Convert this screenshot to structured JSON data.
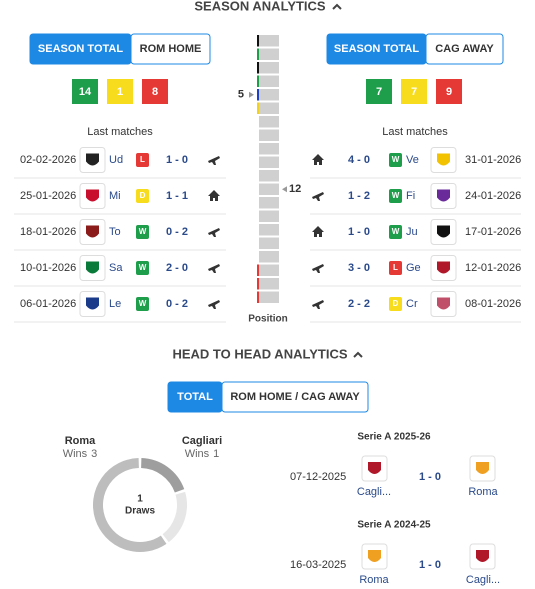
{
  "season": {
    "title": "SEASON ANALYTICS",
    "home": {
      "tabs": [
        "SEASON TOTAL",
        "ROM HOME"
      ],
      "record": [
        {
          "value": 14,
          "color": "#1e9e4b"
        },
        {
          "value": 1,
          "color": "#f7dc1e"
        },
        {
          "value": 8,
          "color": "#e53935"
        }
      ],
      "last_matches_title": "Last matches",
      "matches": [
        {
          "date": "02-02-2026",
          "team": "Ud",
          "result": "L",
          "score": "1 - 0",
          "venue": "away",
          "logo_color": "#222"
        },
        {
          "date": "25-01-2026",
          "team": "Mi",
          "result": "D",
          "score": "1 - 1",
          "venue": "home",
          "logo_color": "#c8102e"
        },
        {
          "date": "18-01-2026",
          "team": "To",
          "result": "W",
          "score": "0 - 2",
          "venue": "away",
          "logo_color": "#8b1a1a"
        },
        {
          "date": "10-01-2026",
          "team": "Sa",
          "result": "W",
          "score": "2 - 0",
          "venue": "away",
          "logo_color": "#0a7a3a"
        },
        {
          "date": "06-01-2026",
          "team": "Le",
          "result": "W",
          "score": "0 - 2",
          "venue": "away",
          "logo_color": "#1a3a8a"
        }
      ]
    },
    "away": {
      "tabs": [
        "SEASON TOTAL",
        "CAG AWAY"
      ],
      "record": [
        {
          "value": 7,
          "color": "#1e9e4b"
        },
        {
          "value": 7,
          "color": "#f7dc1e"
        },
        {
          "value": 9,
          "color": "#e53935"
        }
      ],
      "last_matches_title": "Last matches",
      "matches": [
        {
          "date": "31-01-2026",
          "team": "Ve",
          "result": "W",
          "score": "4 - 0",
          "venue": "home",
          "logo_color": "#f2c200"
        },
        {
          "date": "24-01-2026",
          "team": "Fi",
          "result": "W",
          "score": "1 - 2",
          "venue": "away",
          "logo_color": "#6a2a9a"
        },
        {
          "date": "17-01-2026",
          "team": "Ju",
          "result": "W",
          "score": "1 - 0",
          "venue": "home",
          "logo_color": "#111"
        },
        {
          "date": "12-01-2026",
          "team": "Ge",
          "result": "L",
          "score": "3 - 0",
          "venue": "away",
          "logo_color": "#b0182a"
        },
        {
          "date": "08-01-2026",
          "team": "Cr",
          "result": "D",
          "score": "2 - 2",
          "venue": "away",
          "logo_color": "#c0506a"
        }
      ]
    },
    "position": {
      "home": 5,
      "away": 12,
      "teams": 20,
      "label": "Position"
    }
  },
  "h2h": {
    "title": "HEAD TO HEAD ANALYTICS",
    "tabs": [
      "TOTAL",
      "ROM HOME / CAG AWAY"
    ],
    "summary": {
      "home": {
        "name": "Roma",
        "wins_label": "Wins",
        "wins": 3,
        "color": "#bdbdbd"
      },
      "away": {
        "name": "Cagliari",
        "wins_label": "Wins",
        "wins": 1,
        "color": "#9e9e9e"
      },
      "draws": {
        "value": 1,
        "label": "Draws",
        "color": "#e6e6e6"
      }
    },
    "matches": [
      {
        "competition": "Serie A 2025-26",
        "date": "07-12-2025",
        "home": "Cagli...",
        "score": "1 - 0",
        "away": "Roma",
        "home_color": "#b0182a",
        "away_color": "#f0a020"
      },
      {
        "competition": "Serie A 2024-25",
        "date": "16-03-2025",
        "home": "Roma",
        "score": "1 - 0",
        "away": "Cagli...",
        "home_color": "#f0a020",
        "away_color": "#b0182a"
      }
    ]
  }
}
